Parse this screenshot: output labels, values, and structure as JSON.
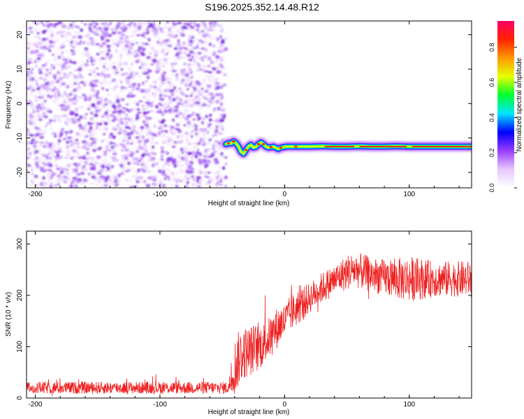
{
  "title": "S196.2025.352.14.48.R12",
  "chart_data": [
    {
      "type": "heatmap",
      "xlabel": "Height of straight line (km)",
      "ylabel": "Frequency (Hz)",
      "xlim": [
        -207,
        150
      ],
      "ylim": [
        -24.5,
        24
      ],
      "xticks": [
        -200,
        -100,
        0,
        100
      ],
      "yticks": [
        -20,
        -10,
        0,
        10,
        20
      ],
      "noise_region": {
        "x_start": -207,
        "x_end": -47,
        "y_range": [
          -24.5,
          24
        ]
      },
      "signal_trace": {
        "x": [
          -47,
          -45,
          -43,
          -41,
          -39,
          -37,
          -35,
          -33,
          -31,
          -29,
          -27,
          -25,
          -23,
          -21,
          -19,
          -17,
          -15,
          -13,
          -11,
          -9,
          -7,
          -5,
          -3,
          -1,
          1,
          3,
          5,
          10,
          20,
          30,
          40,
          50,
          60,
          70,
          80,
          90,
          100,
          110,
          120,
          130,
          140,
          150
        ],
        "y": [
          -11.8,
          -11.5,
          -11.6,
          -11.0,
          -11.5,
          -12.5,
          -14.0,
          -14.6,
          -13.5,
          -12.5,
          -12.0,
          -12.8,
          -12.6,
          -11.8,
          -11.3,
          -11.8,
          -12.5,
          -12.8,
          -12.7,
          -12.5,
          -12.9,
          -13.2,
          -12.8,
          -12.7,
          -12.5,
          -12.5,
          -12.5,
          -12.5,
          -12.5,
          -12.4,
          -12.5,
          -12.5,
          -12.4,
          -12.5,
          -12.5,
          -12.4,
          -12.5,
          -12.5,
          -12.5,
          -12.5,
          -12.5,
          -12.5
        ]
      },
      "colorbar": {
        "label": "Normalized spectral amplitude",
        "range": [
          0,
          0.95
        ],
        "ticks": [
          "0.0",
          "0.2",
          "0.4",
          "0.6",
          "0.8"
        ],
        "tick_values": [
          0,
          0.2,
          0.4,
          0.6,
          0.8
        ],
        "stops": [
          "#ffffff",
          "#e6c8ff",
          "#9a3cff",
          "#0000ff",
          "#00e5ff",
          "#00ff30",
          "#e6ff00",
          "#ff9900",
          "#ff2200",
          "#ff0066"
        ]
      }
    },
    {
      "type": "line",
      "xlabel": "Height of straight line (km)",
      "ylabel": "SNR (10 * v/v)",
      "xlim": [
        -207,
        150
      ],
      "ylim": [
        0,
        325
      ],
      "xticks": [
        -200,
        -100,
        0,
        100
      ],
      "yticks": [
        0,
        100,
        200,
        300
      ],
      "series": [
        {
          "name": "SNR",
          "color": "#ee2222",
          "x": [
            -207,
            -180,
            -150,
            -120,
            -90,
            -60,
            -45,
            -40,
            -35,
            -30,
            -25,
            -20,
            -15,
            -10,
            -5,
            0,
            5,
            10,
            20,
            30,
            40,
            50,
            55,
            60,
            70,
            80,
            90,
            100,
            110,
            120,
            130,
            140,
            150
          ],
          "y": [
            20,
            20,
            20,
            20,
            20,
            20,
            20,
            60,
            85,
            90,
            95,
            100,
            110,
            125,
            140,
            150,
            165,
            175,
            195,
            215,
            230,
            245,
            250,
            248,
            240,
            235,
            232,
            232,
            232,
            232,
            232,
            232,
            232
          ],
          "noise_amplitude": [
            12,
            12,
            12,
            12,
            12,
            12,
            12,
            55,
            55,
            50,
            50,
            45,
            40,
            40,
            40,
            35,
            35,
            35,
            30,
            30,
            30,
            35,
            35,
            35,
            35,
            35,
            40,
            45,
            40,
            35,
            35,
            35,
            35
          ]
        }
      ]
    }
  ]
}
